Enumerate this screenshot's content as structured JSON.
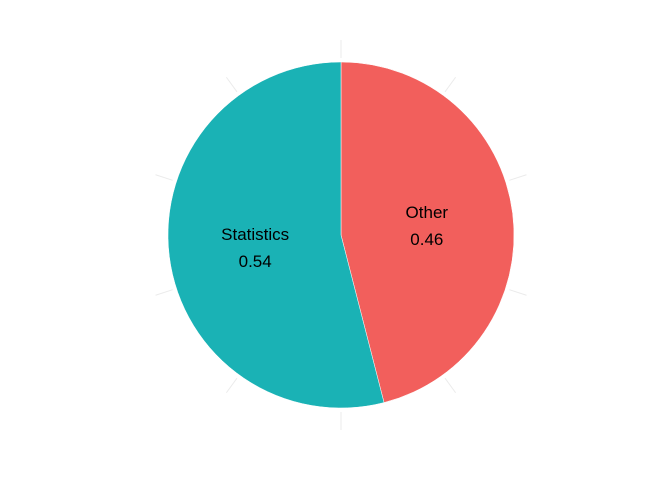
{
  "chart_data": {
    "type": "pie",
    "title": "",
    "slices": [
      {
        "name": "Other",
        "value": 0.46,
        "label": "Other",
        "value_label": "0.46",
        "color": "#F25F5C"
      },
      {
        "name": "Statistics",
        "value": 0.54,
        "label": "Statistics",
        "value_label": "0.54",
        "color": "#1AB2B5"
      }
    ],
    "start_direction": "top",
    "direction": "clockwise",
    "legend": "none",
    "grid": true
  }
}
